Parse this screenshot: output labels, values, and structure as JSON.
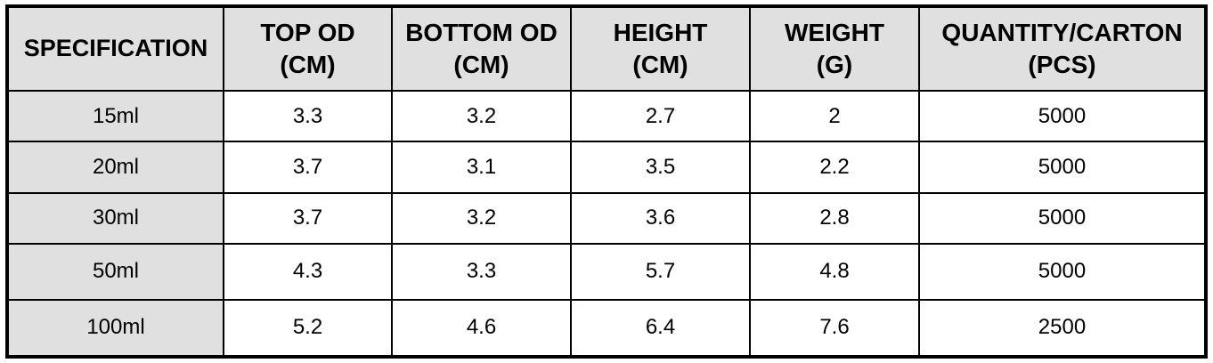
{
  "table": {
    "headers": [
      {
        "line1": "SPECIFICATION",
        "line2": ""
      },
      {
        "line1": "TOP OD",
        "line2": "(CM)"
      },
      {
        "line1": "BOTTOM OD",
        "line2": "(CM)"
      },
      {
        "line1": "HEIGHT",
        "line2": "(CM)"
      },
      {
        "line1": "WEIGHT",
        "line2": "(G)"
      },
      {
        "line1": "QUANTITY/CARTON",
        "line2": "(PCS)"
      }
    ],
    "rows": [
      [
        "15ml",
        "3.3",
        "3.2",
        "2.7",
        "2",
        "5000"
      ],
      [
        "20ml",
        "3.7",
        "3.1",
        "3.5",
        "2.2",
        "5000"
      ],
      [
        "30ml",
        "3.7",
        "3.2",
        "3.6",
        "2.8",
        "5000"
      ],
      [
        "50ml",
        "4.3",
        "3.3",
        "5.7",
        "4.8",
        "5000"
      ],
      [
        "100ml",
        "5.2",
        "4.6",
        "6.4",
        "7.6",
        "2500"
      ]
    ]
  },
  "colors": {
    "header_bg": "#e0e0e0",
    "border": "#000000",
    "cell_bg": "#ffffff"
  }
}
